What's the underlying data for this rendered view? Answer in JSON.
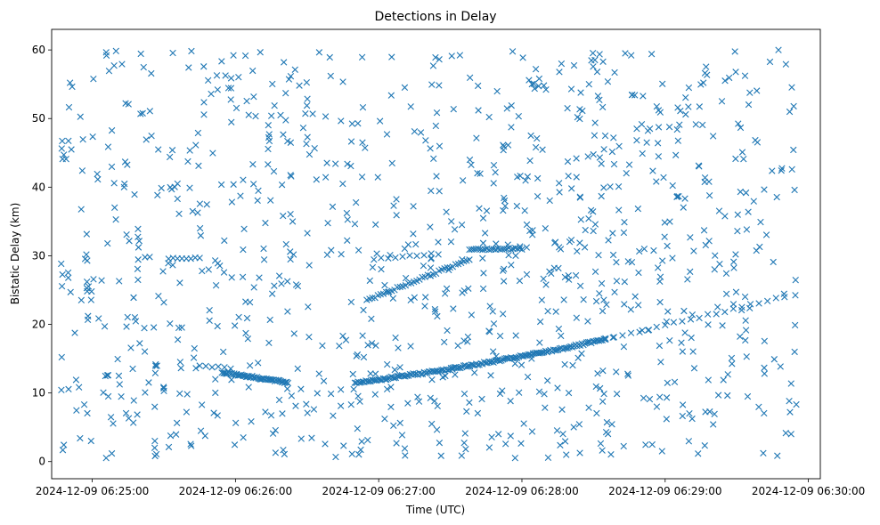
{
  "chart_data": {
    "type": "scatter",
    "title": "Detections in Delay",
    "xlabel": "Time (UTC)",
    "ylabel": "Bistatic Delay (km)",
    "x_ticks": [
      "2024-12-09 06:25:00",
      "2024-12-09 06:26:00",
      "2024-12-09 06:27:00",
      "2024-12-09 06:28:00",
      "2024-12-09 06:29:00",
      "2024-12-09 06:30:00"
    ],
    "y_ticks": [
      "0",
      "10",
      "20",
      "30",
      "40",
      "50",
      "60"
    ],
    "x_range": [
      "2024-12-09 06:24:43",
      "2024-12-09 06:30:05"
    ],
    "ylim": [
      -2.5,
      63
    ],
    "grid": false,
    "marker": "x",
    "color": "#1f77b4",
    "series": [
      {
        "name": "",
        "tracks": [
          {
            "x_start": "2024-12-09 06:25:55",
            "x_end": "2024-12-09 06:26:22",
            "y_start": 13.0,
            "y_end": 11.5,
            "count": 55,
            "curve": 0.0
          },
          {
            "x_start": "2024-12-09 06:26:50",
            "x_end": "2024-12-09 06:28:35",
            "y_start": 11.5,
            "y_end": 17.8,
            "count": 160,
            "curve": 1.6
          },
          {
            "x_start": "2024-12-09 06:28:35",
            "x_end": "2024-12-09 06:29:50",
            "y_start": 17.8,
            "y_end": 24.0,
            "count": 22,
            "curve": 0.0
          },
          {
            "x_start": "2024-12-09 06:26:55",
            "x_end": "2024-12-09 06:27:38",
            "y_start": 23.5,
            "y_end": 29.5,
            "count": 38,
            "curve": 0.0
          },
          {
            "x_start": "2024-12-09 06:27:38",
            "x_end": "2024-12-09 06:28:00",
            "y_start": 31.0,
            "y_end": 31.0,
            "count": 25,
            "curve": 0.0
          },
          {
            "x_start": "2024-12-09 06:26:58",
            "x_end": "2024-12-09 06:27:25",
            "y_start": 29.5,
            "y_end": 30.3,
            "count": 10,
            "curve": 0.0
          },
          {
            "x_start": "2024-12-09 06:25:32",
            "x_end": "2024-12-09 06:25:45",
            "y_start": 29.6,
            "y_end": 29.6,
            "count": 8,
            "curve": 0.0
          },
          {
            "x_start": "2024-12-09 06:25:45",
            "x_end": "2024-12-09 06:25:58",
            "y_start": 14.0,
            "y_end": 13.6,
            "count": 6,
            "curve": 0.0
          }
        ],
        "clutter": {
          "x_start": "2024-12-09 06:24:47",
          "x_end": "2024-12-09 06:29:55",
          "y_min": 0.5,
          "y_max": 60.0,
          "count": 1000
        }
      }
    ]
  }
}
